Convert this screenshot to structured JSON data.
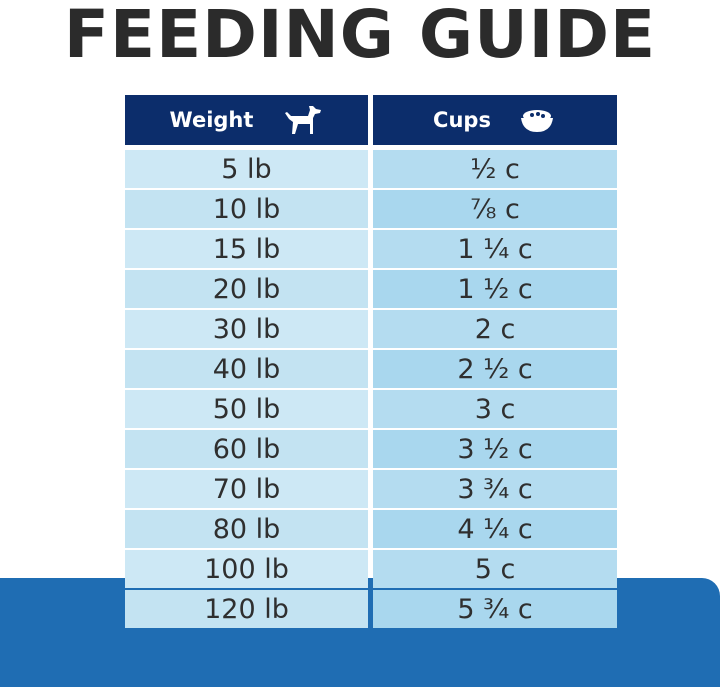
{
  "header": {
    "title": "FEEDING GUIDE"
  },
  "table": {
    "columns": [
      "Weight",
      "Cups"
    ],
    "rows": [
      [
        "5 lb",
        "½ c"
      ],
      [
        "10 lb",
        "⅞ c"
      ],
      [
        "15 lb",
        "1 ¼ c"
      ],
      [
        "20 lb",
        "1 ½ c"
      ],
      [
        "30 lb",
        "2 c"
      ],
      [
        "40 lb",
        "2 ½ c"
      ],
      [
        "50 lb",
        "3 c"
      ],
      [
        "60 lb",
        "3 ½ c"
      ],
      [
        "70 lb",
        "3 ¾ c"
      ],
      [
        "80 lb",
        "4 ¼ c"
      ],
      [
        "100 lb",
        "5 c"
      ],
      [
        "120 lb",
        "5 ¾ c"
      ]
    ]
  }
}
